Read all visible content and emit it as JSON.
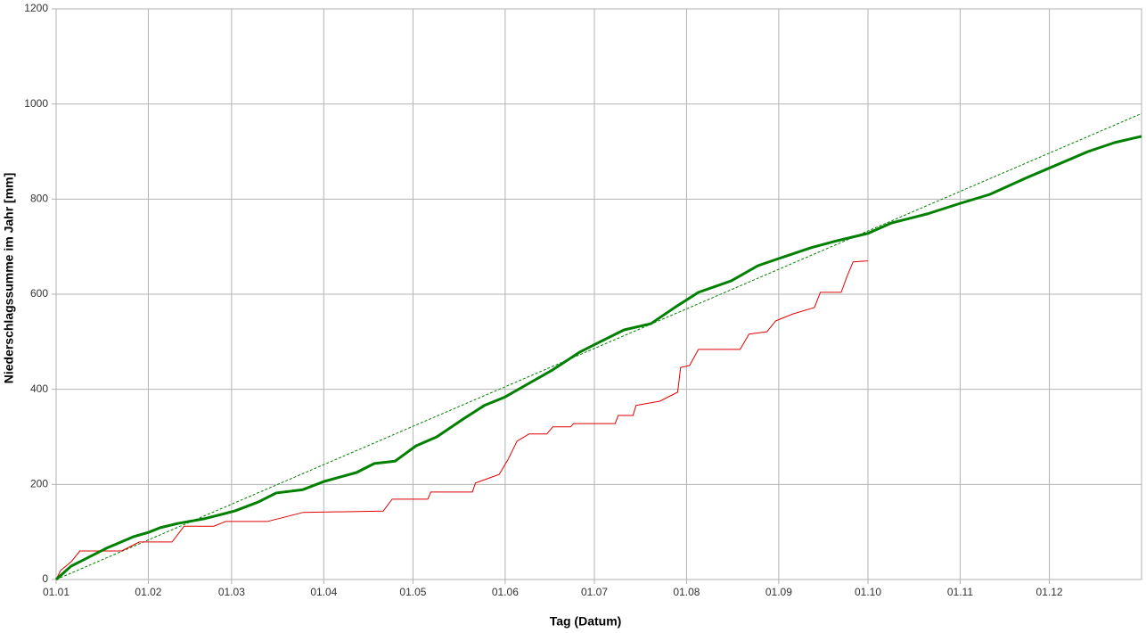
{
  "chart_data": {
    "type": "line",
    "x_label": "Tag (Datum)",
    "y_label": "Niederschlagssumme im Jahr [mm]",
    "xlim": [
      0,
      365
    ],
    "xticks": [
      {
        "value": 0,
        "label": "01.01"
      },
      {
        "value": 31,
        "label": "01.02"
      },
      {
        "value": 59,
        "label": "01.03"
      },
      {
        "value": 90,
        "label": "01.04"
      },
      {
        "value": 120,
        "label": "01.05"
      },
      {
        "value": 151,
        "label": "01.06"
      },
      {
        "value": 181,
        "label": "01.07"
      },
      {
        "value": 212,
        "label": "01.08"
      },
      {
        "value": 243,
        "label": "01.09"
      },
      {
        "value": 273,
        "label": "01.10"
      },
      {
        "value": 304,
        "label": "01.11"
      },
      {
        "value": 334,
        "label": "01.12"
      }
    ],
    "ylim": [
      0,
      1200
    ],
    "yticks": [
      0,
      200,
      400,
      600,
      800,
      1000,
      1200
    ],
    "grid": true,
    "series": [
      {
        "color": "#008000",
        "width": 3,
        "dashed": false,
        "x": [
          0,
          5,
          11,
          17,
          26,
          31,
          35,
          41,
          50,
          60,
          68,
          74,
          83,
          90,
          101,
          107,
          114,
          121,
          128,
          137,
          144,
          151,
          158,
          167,
          176,
          182,
          191,
          200,
          208,
          216,
          227,
          236,
          243,
          254,
          263,
          273,
          281,
          293,
          304,
          314,
          326,
          335,
          347,
          356,
          365
        ],
        "values": [
          0,
          28,
          47,
          66,
          90,
          99,
          109,
          118,
          128,
          144,
          163,
          182,
          189,
          206,
          225,
          244,
          249,
          281,
          300,
          338,
          366,
          384,
          409,
          441,
          478,
          497,
          525,
          538,
          572,
          604,
          628,
          660,
          675,
          698,
          713,
          728,
          750,
          769,
          791,
          810,
          844,
          868,
          900,
          919,
          932
        ]
      },
      {
        "color": "#e00000",
        "width": 1,
        "dashed": false,
        "x": [
          0,
          1.5,
          5,
          8,
          22,
          28,
          39,
          43,
          53,
          57,
          71,
          83,
          110,
          113,
          125,
          126,
          140,
          141,
          149,
          152,
          155,
          159,
          165,
          167,
          173,
          174,
          188,
          189,
          194,
          195,
          203,
          209,
          210,
          213,
          216,
          230,
          233,
          239,
          242,
          248,
          255,
          257,
          264,
          266,
          268,
          273
        ],
        "values": [
          0,
          19,
          37,
          60,
          60,
          79,
          79,
          112,
          112,
          122,
          122,
          141,
          144,
          169,
          169,
          184,
          184,
          203,
          221,
          253,
          291,
          306,
          306,
          321,
          321,
          328,
          328,
          345,
          345,
          366,
          375,
          394,
          446,
          450,
          484,
          484,
          516,
          521,
          544,
          559,
          572,
          604,
          604,
          638,
          668,
          670
        ]
      },
      {
        "color": "#008000",
        "width": 1,
        "dashed": true,
        "x": [
          0,
          365
        ],
        "values": [
          0,
          980
        ]
      }
    ]
  }
}
